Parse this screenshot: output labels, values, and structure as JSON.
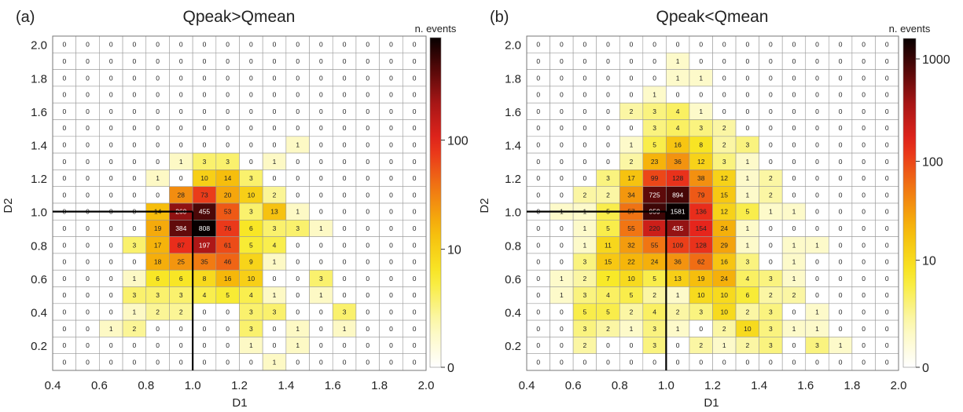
{
  "chart_data": [
    {
      "type": "heatmap",
      "panel_label": "(a)",
      "title": "Qpeak>Qmean",
      "xlabel": "D1",
      "ylabel": "D2",
      "xlim": [
        0.4,
        2.0
      ],
      "ylim": [
        0.05,
        2.0
      ],
      "x_ticks": [
        "0.4",
        "0.6",
        "0.8",
        "1.0",
        "1.2",
        "1.4",
        "1.6",
        "1.8",
        "2.0"
      ],
      "y_ticks": [
        "0.2",
        "0.4",
        "0.6",
        "0.8",
        "1.0",
        "1.2",
        "1.4",
        "1.6",
        "1.8",
        "2.0"
      ],
      "colorbar": {
        "label": "n. events",
        "ticks": [
          "0",
          "10",
          "100"
        ],
        "scale": "log",
        "max": 808
      },
      "grid": "rows top (D2=1.95) to bottom (D2=0.15), columns left (D1=0.45) to right (D1=1.95)",
      "values": [
        [
          0,
          0,
          0,
          0,
          0,
          0,
          0,
          0,
          0,
          0,
          0,
          0,
          0,
          0,
          0,
          0
        ],
        [
          0,
          0,
          0,
          0,
          0,
          0,
          0,
          0,
          0,
          0,
          0,
          0,
          0,
          0,
          0,
          0
        ],
        [
          0,
          0,
          0,
          0,
          0,
          0,
          0,
          0,
          0,
          0,
          0,
          0,
          0,
          0,
          0,
          0
        ],
        [
          0,
          0,
          0,
          0,
          0,
          0,
          0,
          0,
          0,
          0,
          0,
          0,
          0,
          0,
          0,
          0
        ],
        [
          0,
          0,
          0,
          0,
          0,
          0,
          0,
          0,
          0,
          0,
          0,
          0,
          0,
          0,
          0,
          0
        ],
        [
          0,
          0,
          0,
          0,
          0,
          0,
          0,
          0,
          0,
          0,
          0,
          0,
          0,
          0,
          0,
          0
        ],
        [
          0,
          0,
          0,
          0,
          0,
          0,
          0,
          0,
          0,
          0,
          1,
          0,
          0,
          0,
          0,
          0
        ],
        [
          0,
          0,
          0,
          0,
          0,
          1,
          3,
          3,
          0,
          1,
          0,
          0,
          0,
          0,
          0,
          0
        ],
        [
          0,
          0,
          0,
          0,
          1,
          0,
          10,
          14,
          3,
          0,
          0,
          0,
          0,
          0,
          0,
          0
        ],
        [
          0,
          0,
          0,
          0,
          0,
          28,
          73,
          20,
          10,
          2,
          0,
          0,
          0,
          0,
          0,
          0
        ],
        [
          0,
          0,
          0,
          0,
          14,
          260,
          455,
          53,
          3,
          13,
          1,
          0,
          0,
          0,
          0,
          0
        ],
        [
          0,
          0,
          0,
          0,
          19,
          384,
          808,
          76,
          6,
          3,
          3,
          1,
          0,
          0,
          0,
          0
        ],
        [
          0,
          0,
          0,
          3,
          17,
          87,
          197,
          61,
          5,
          4,
          0,
          0,
          0,
          0,
          0,
          0
        ],
        [
          0,
          0,
          0,
          0,
          18,
          25,
          35,
          46,
          9,
          1,
          0,
          0,
          0,
          0,
          0,
          0
        ],
        [
          0,
          0,
          0,
          1,
          6,
          6,
          8,
          16,
          10,
          0,
          0,
          3,
          0,
          0,
          0,
          0
        ],
        [
          0,
          0,
          0,
          3,
          3,
          3,
          4,
          5,
          4,
          1,
          0,
          1,
          0,
          0,
          0,
          0
        ],
        [
          0,
          0,
          0,
          1,
          2,
          2,
          0,
          0,
          3,
          3,
          0,
          0,
          3,
          0,
          0,
          0
        ],
        [
          0,
          0,
          1,
          2,
          0,
          0,
          0,
          0,
          3,
          0,
          1,
          0,
          1,
          0,
          0,
          0
        ],
        [
          0,
          0,
          0,
          0,
          0,
          0,
          0,
          0,
          1,
          0,
          1,
          0,
          0,
          0,
          0,
          0
        ],
        [
          0,
          0,
          0,
          0,
          0,
          0,
          0,
          0,
          0,
          1,
          0,
          0,
          0,
          0,
          0,
          0
        ]
      ]
    },
    {
      "type": "heatmap",
      "panel_label": "(b)",
      "title": "Qpeak<Qmean",
      "xlabel": "D1",
      "ylabel": "D2",
      "xlim": [
        0.4,
        2.0
      ],
      "ylim": [
        0.05,
        2.0
      ],
      "x_ticks": [
        "0.4",
        "0.6",
        "0.8",
        "1.0",
        "1.2",
        "1.4",
        "1.6",
        "1.8",
        "2.0"
      ],
      "y_ticks": [
        "0.2",
        "0.4",
        "0.6",
        "0.8",
        "1.0",
        "1.2",
        "1.4",
        "1.6",
        "1.8",
        "2.0"
      ],
      "colorbar": {
        "label": "n. events",
        "ticks": [
          "0",
          "10",
          "100",
          "1000"
        ],
        "scale": "log",
        "max": 1581
      },
      "grid": "rows top (D2=1.95) to bottom (D2=0.15), columns left (D1=0.45) to right (D1=1.95)",
      "values": [
        [
          0,
          0,
          0,
          0,
          0,
          0,
          0,
          0,
          0,
          0,
          0,
          0,
          0,
          0,
          0,
          0
        ],
        [
          0,
          0,
          0,
          0,
          0,
          0,
          1,
          0,
          0,
          0,
          0,
          0,
          0,
          0,
          0,
          0
        ],
        [
          0,
          0,
          0,
          0,
          0,
          0,
          1,
          1,
          0,
          0,
          0,
          0,
          0,
          0,
          0,
          0
        ],
        [
          0,
          0,
          0,
          0,
          0,
          1,
          0,
          0,
          0,
          0,
          0,
          0,
          0,
          0,
          0,
          0
        ],
        [
          0,
          0,
          0,
          0,
          2,
          3,
          4,
          1,
          0,
          0,
          0,
          0,
          0,
          0,
          0,
          0
        ],
        [
          0,
          0,
          0,
          0,
          0,
          3,
          4,
          3,
          2,
          0,
          0,
          0,
          0,
          0,
          0,
          0
        ],
        [
          0,
          0,
          0,
          0,
          1,
          5,
          16,
          8,
          2,
          3,
          0,
          0,
          0,
          0,
          0,
          0
        ],
        [
          0,
          0,
          0,
          0,
          2,
          23,
          36,
          12,
          3,
          1,
          0,
          0,
          0,
          0,
          0,
          0
        ],
        [
          0,
          0,
          0,
          3,
          17,
          99,
          128,
          38,
          12,
          1,
          2,
          0,
          0,
          0,
          0,
          0
        ],
        [
          0,
          0,
          2,
          2,
          34,
          725,
          894,
          79,
          15,
          1,
          2,
          0,
          0,
          0,
          0,
          0
        ],
        [
          0,
          1,
          1,
          5,
          57,
          959,
          1581,
          136,
          12,
          5,
          1,
          1,
          0,
          0,
          0,
          0
        ],
        [
          0,
          0,
          1,
          5,
          55,
          220,
          435,
          154,
          24,
          1,
          0,
          0,
          0,
          0,
          0,
          0
        ],
        [
          0,
          0,
          1,
          11,
          32,
          55,
          109,
          128,
          29,
          1,
          0,
          1,
          1,
          0,
          0,
          0
        ],
        [
          0,
          0,
          3,
          15,
          22,
          24,
          36,
          62,
          16,
          3,
          0,
          1,
          0,
          0,
          0,
          0
        ],
        [
          0,
          1,
          2,
          7,
          10,
          5,
          13,
          19,
          24,
          4,
          3,
          1,
          0,
          0,
          0,
          0
        ],
        [
          0,
          1,
          3,
          4,
          5,
          2,
          1,
          10,
          10,
          6,
          2,
          2,
          0,
          0,
          0,
          0
        ],
        [
          0,
          0,
          5,
          5,
          2,
          4,
          2,
          3,
          10,
          2,
          3,
          0,
          1,
          0,
          0,
          0
        ],
        [
          0,
          0,
          3,
          2,
          1,
          3,
          1,
          0,
          2,
          10,
          3,
          1,
          1,
          0,
          0,
          0
        ],
        [
          0,
          0,
          2,
          0,
          0,
          3,
          0,
          2,
          1,
          2,
          3,
          0,
          3,
          1,
          0,
          0
        ],
        [
          0,
          0,
          0,
          0,
          0,
          0,
          0,
          0,
          0,
          0,
          0,
          0,
          0,
          0,
          0,
          0
        ]
      ]
    }
  ]
}
